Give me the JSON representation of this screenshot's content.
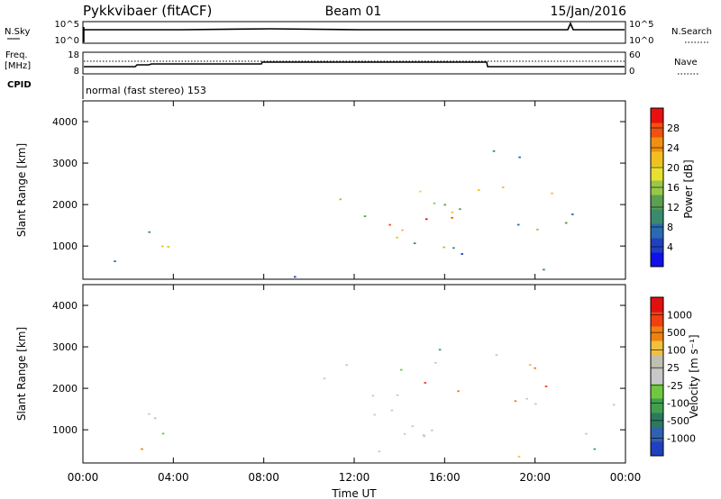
{
  "header": {
    "title": "Pykkvibaer (fitACF)",
    "beam": "Beam 01",
    "date": "15/Jan/2016"
  },
  "status_panels": {
    "nsky_label": "N.Sky",
    "nsearch_label": "N.Search",
    "nsky_ticks": [
      "10^5",
      "10^0"
    ],
    "nsearch_ticks": [
      "10^5",
      "10^0"
    ],
    "freq_label_line1": "Freq.",
    "freq_label_line2": "[MHz]",
    "freq_ticks": [
      "18",
      "8"
    ],
    "nave_label": "Nave",
    "nave_ticks": [
      "60",
      "0"
    ],
    "cpid_label": "CPID",
    "cpid_value": "normal (fast stereo) 153"
  },
  "chart_data": [
    {
      "type": "heatmap",
      "name": "power",
      "ylabel": "Slant Range [km]",
      "xlabel": "",
      "ylim": [
        200,
        4500
      ],
      "yticks": [
        "1000",
        "2000",
        "3000",
        "4000"
      ],
      "xlim_hours": [
        0,
        24
      ],
      "colorbar": {
        "label": "Power [dB]",
        "ticks": [
          "28",
          "24",
          "20",
          "16",
          "12",
          "8",
          "4"
        ],
        "colors": [
          "#1010e8",
          "#2040c0",
          "#2a6ab0",
          "#3a8a70",
          "#5aa050",
          "#98c848",
          "#e8e030",
          "#f0c020",
          "#f09010",
          "#f05010",
          "#e81010"
        ]
      }
    },
    {
      "type": "heatmap",
      "name": "velocity",
      "ylabel": "Slant Range [km]",
      "xlabel": "Time UT",
      "ylim": [
        200,
        4500
      ],
      "yticks": [
        "1000",
        "2000",
        "3000",
        "4000"
      ],
      "xticks": [
        "00:00",
        "04:00",
        "08:00",
        "12:00",
        "16:00",
        "20:00",
        "00:00"
      ],
      "colorbar": {
        "label": "Velocity [m s⁻¹]",
        "ticks": [
          "1000",
          "500",
          "100",
          "25",
          "-25",
          "-100",
          "-500",
          "-1000"
        ],
        "colors": [
          "#2040c0",
          "#3060b0",
          "#2a7a60",
          "#40a050",
          "#70c840",
          "#c8c8c8",
          "#c0c0b0",
          "#f0c040",
          "#f08010",
          "#f04010",
          "#e01010"
        ]
      }
    }
  ]
}
